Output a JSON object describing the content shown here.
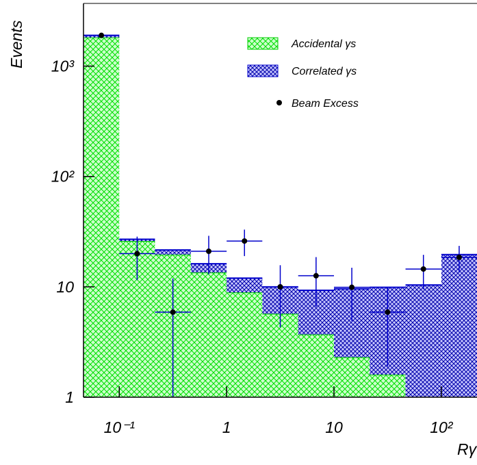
{
  "chart_data": {
    "type": "histogram",
    "ylabel": "Events",
    "xlabel": "Rγ",
    "log_x": true,
    "log_y": true,
    "bins": [
      0.0464,
      0.1,
      0.215,
      0.464,
      1,
      2.15,
      4.64,
      10,
      21.5,
      46.4,
      100,
      215
    ],
    "series": [
      {
        "name": "Accidental γs",
        "color": "#00cc00",
        "fill": "#ccffcc",
        "values": [
          1820,
          26,
          19.6,
          13.5,
          8.9,
          5.7,
          3.7,
          2.3,
          1.6,
          0,
          0
        ]
      },
      {
        "name": "Correlated γs",
        "color": "#0000cc",
        "fill": "#b8b8ff",
        "values": [
          80,
          1,
          2,
          2.7,
          3.1,
          4.3,
          5.6,
          7.3,
          8.3,
          10.4,
          19.6
        ]
      }
    ],
    "points": {
      "name": "Beam Excess",
      "color": "#000000",
      "error_color": "#0000cc",
      "values": [
        1900,
        20,
        5.9,
        21,
        26,
        10,
        12.6,
        9.9,
        5.9,
        14.5,
        18.5
      ],
      "errors": [
        0,
        8.5,
        6,
        8,
        7,
        5.7,
        6,
        5,
        4,
        5,
        5
      ]
    },
    "xlim": [
      0.0464,
      215
    ],
    "ylim": [
      1,
      3700
    ],
    "xticks": [
      {
        "value": 0.1,
        "label": "10⁻¹"
      },
      1,
      10,
      {
        "value": 100,
        "label": "10²"
      }
    ],
    "yticks": [
      1,
      10,
      {
        "value": 100,
        "label": "10²"
      },
      {
        "value": 1000,
        "label": "10³"
      }
    ]
  }
}
